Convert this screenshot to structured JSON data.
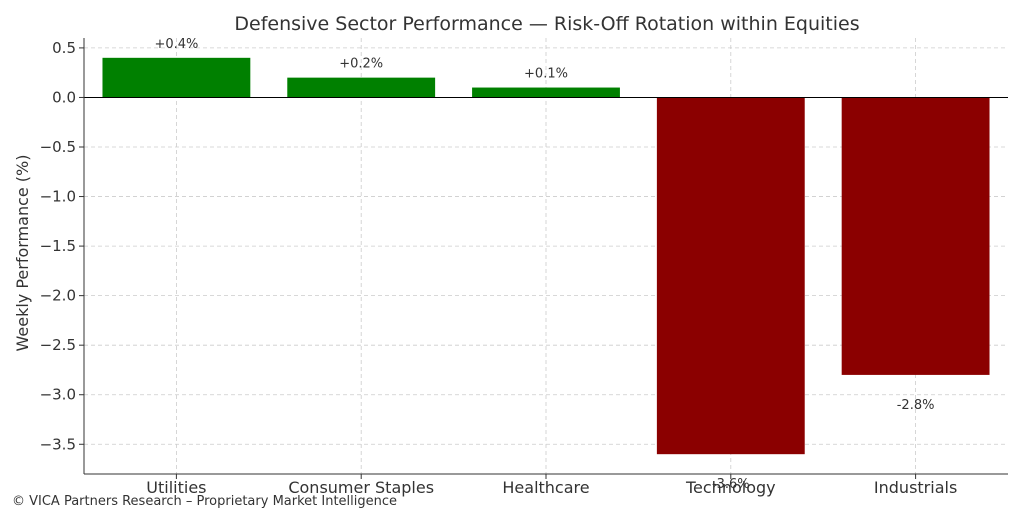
{
  "chart_data": {
    "type": "bar",
    "title": "Defensive Sector Performance — Risk-Off Rotation within Equities",
    "xlabel": "",
    "ylabel": "Weekly Performance (%)",
    "categories": [
      "Utilities",
      "Consumer Staples",
      "Healthcare",
      "Technology",
      "Industrials"
    ],
    "values": [
      0.4,
      0.2,
      0.1,
      -3.6,
      -2.8
    ],
    "data_labels": [
      "+0.4%",
      "+0.2%",
      "+0.1%",
      "-3.6%",
      "-2.8%"
    ],
    "bar_colors": [
      "#008000",
      "#008000",
      "#008000",
      "#8b0000",
      "#8b0000"
    ],
    "ylim": [
      -3.8,
      0.6
    ],
    "yticks": [
      0.5,
      0.0,
      -0.5,
      -1.0,
      -1.5,
      -2.0,
      -2.5,
      -3.0,
      -3.5
    ],
    "ytick_labels": [
      "0.5",
      "0.0",
      "−0.5",
      "−1.0",
      "−1.5",
      "−2.0",
      "−2.5",
      "−3.0",
      "−3.5"
    ],
    "grid": true,
    "zero_line": true
  },
  "footer": {
    "text": "© VICA Partners Research – Proprietary Market Intelligence"
  }
}
